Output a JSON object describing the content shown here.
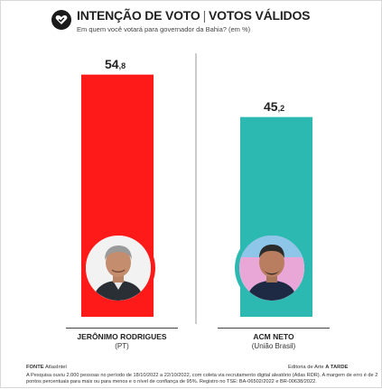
{
  "header": {
    "title": "INTENÇÃO DE VOTO",
    "title_separator": "|",
    "title_suffix": "VOTOS VÁLIDOS",
    "subtitle": "Em quem você votará para governador da Bahia? (em %)",
    "logo_icon": "heart-check-icon"
  },
  "chart_data": {
    "type": "bar",
    "categories": [
      "JERÔNIMO RODRIGUES",
      "ACM NETO"
    ],
    "values": [
      54.8,
      45.2
    ],
    "value_labels": [
      {
        "int": "54",
        "dec": ",8"
      },
      {
        "int": "45",
        "dec": ",2"
      }
    ],
    "colors": [
      "#ff1a1a",
      "#2bb9b2"
    ],
    "ylim": [
      0,
      58
    ],
    "title": "INTENÇÃO DE VOTO",
    "xlabel": "",
    "ylabel": "",
    "grid": false
  },
  "candidates": [
    {
      "name": "JERÔNIMO RODRIGUES",
      "party": "(PT)",
      "photo_icon": "candidate-photo"
    },
    {
      "name": "ACM NETO",
      "party": "(União Brasil)",
      "photo_icon": "candidate-photo"
    }
  ],
  "footer": {
    "source_label": "FONTE",
    "source": "AtlasIntel",
    "credit": "Editoria de Arte",
    "credit_brand": "A TARDE",
    "note": "A Pesquisa ouviu 2.000 pessoas no período de 18/10/2022 a 22/10/2022, com coleta via recrutamento digital aleatório (Atlas RDR). A margem de erro é de 2 pontos percentuais para mais ou para menos e o nível de confiança de 95%. Registro no TSE: BA-06502/2022 e BR-00638/2022."
  }
}
